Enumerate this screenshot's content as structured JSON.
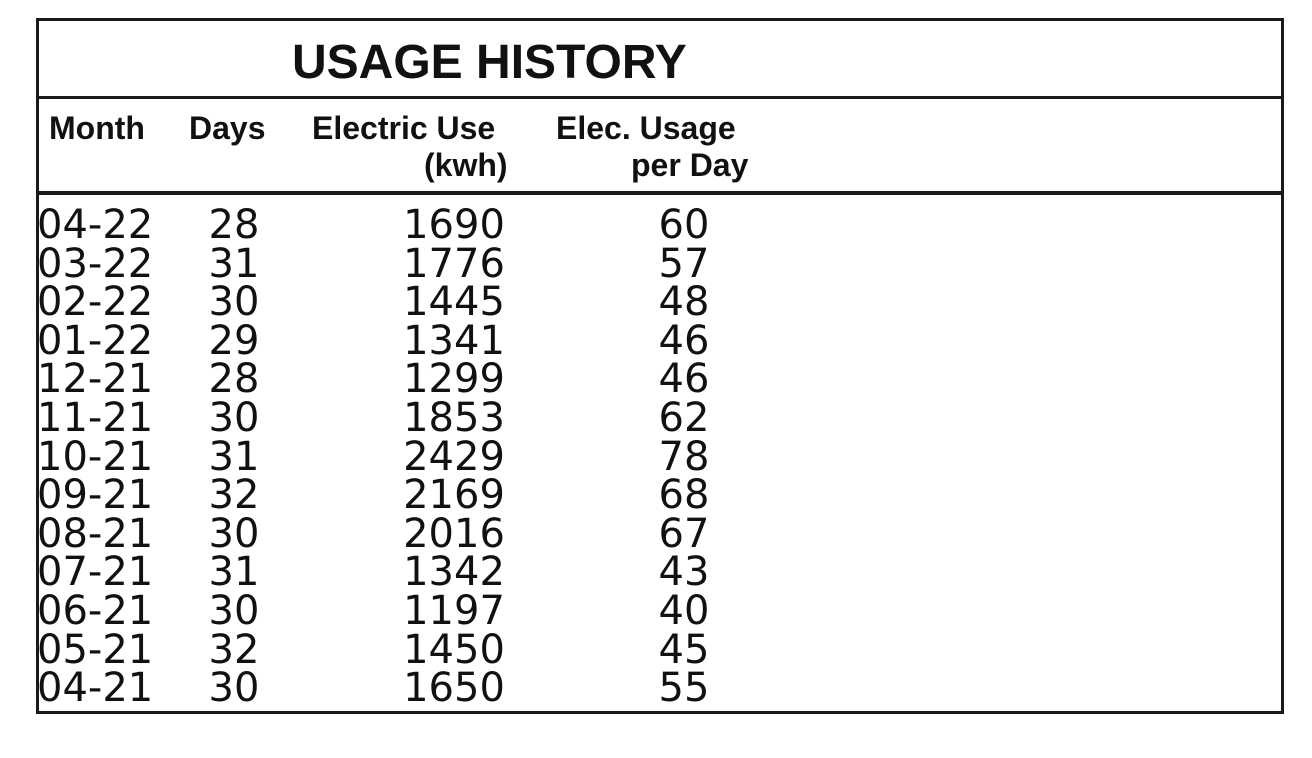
{
  "title": "USAGE HISTORY",
  "headers": {
    "month": "Month",
    "days": "Days",
    "electric_use_line1": "Electric Use",
    "electric_use_line2": "(kwh)",
    "elec_usage_line1": "Elec. Usage",
    "elec_usage_line2": "per Day"
  },
  "rows": [
    {
      "month": "04-22",
      "days": "28",
      "kwh": "1690",
      "per_day": "60"
    },
    {
      "month": "03-22",
      "days": "31",
      "kwh": "1776",
      "per_day": "57"
    },
    {
      "month": "02-22",
      "days": "30",
      "kwh": "1445",
      "per_day": "48"
    },
    {
      "month": "01-22",
      "days": "29",
      "kwh": "1341",
      "per_day": "46"
    },
    {
      "month": "12-21",
      "days": "28",
      "kwh": "1299",
      "per_day": "46"
    },
    {
      "month": "11-21",
      "days": "30",
      "kwh": "1853",
      "per_day": "62"
    },
    {
      "month": "10-21",
      "days": "31",
      "kwh": "2429",
      "per_day": "78"
    },
    {
      "month": "09-21",
      "days": "32",
      "kwh": "2169",
      "per_day": "68"
    },
    {
      "month": "08-21",
      "days": "30",
      "kwh": "2016",
      "per_day": "67"
    },
    {
      "month": "07-21",
      "days": "31",
      "kwh": "1342",
      "per_day": "43"
    },
    {
      "month": "06-21",
      "days": "30",
      "kwh": "1197",
      "per_day": "40"
    },
    {
      "month": "05-21",
      "days": "32",
      "kwh": "1450",
      "per_day": "45"
    },
    {
      "month": "04-21",
      "days": "30",
      "kwh": "1650",
      "per_day": "55"
    }
  ]
}
